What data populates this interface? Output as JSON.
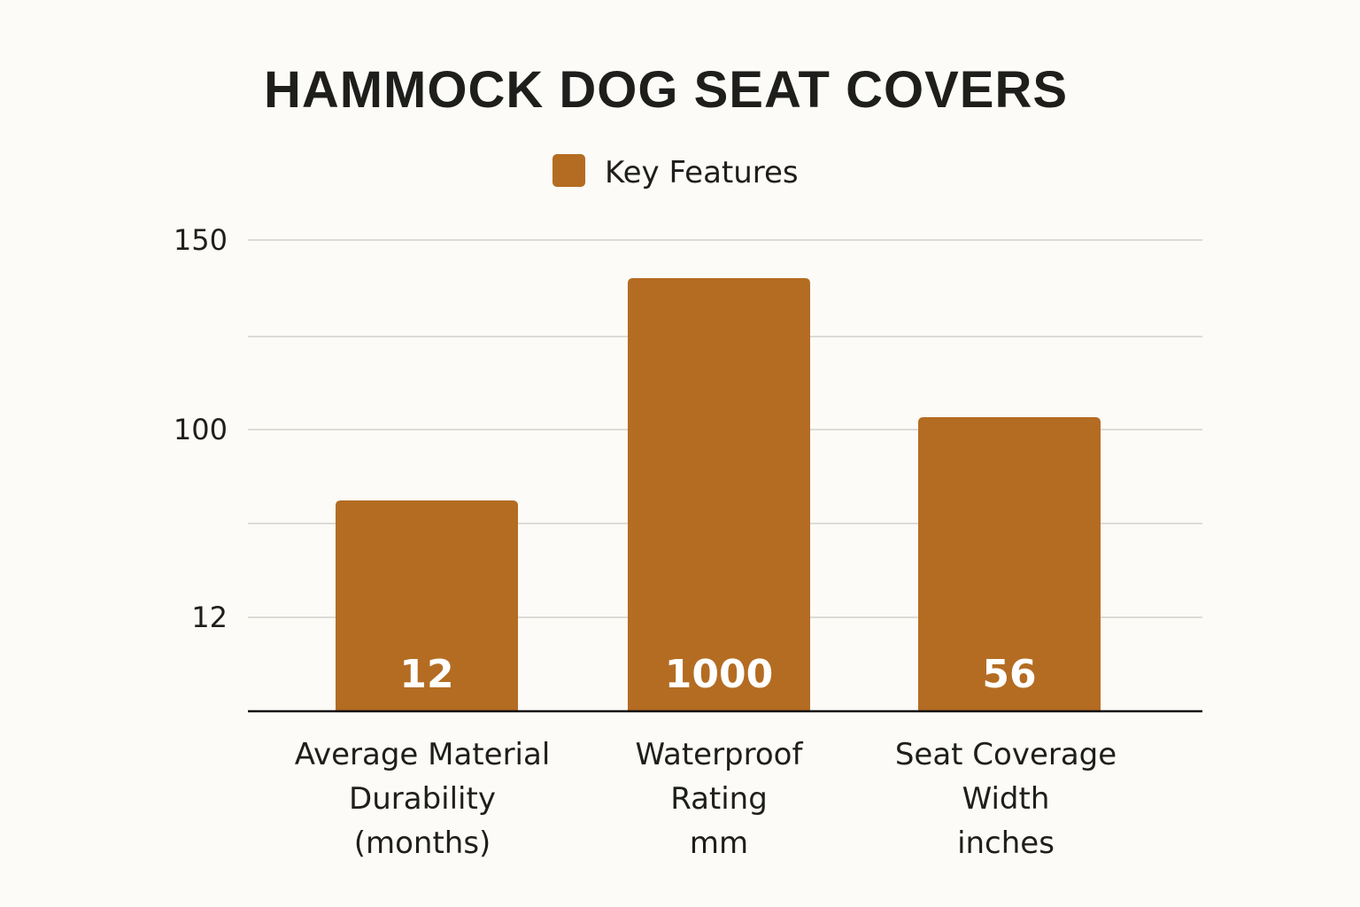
{
  "chart_data": {
    "type": "bar",
    "title": "HAMMOCK DOG SEAT COVERS",
    "legend": {
      "label": "Key Features",
      "placement": "top-center"
    },
    "categories": [
      [
        "Average Material",
        "Durability",
        "(months)"
      ],
      [
        "Waterproof",
        "Rating",
        "mm"
      ],
      [
        "Seat Coverage",
        "Width",
        "inches"
      ]
    ],
    "series": [
      {
        "name": "Key Features",
        "values": [
          12,
          1000,
          56
        ],
        "data_labels": [
          "12",
          "1000",
          "56"
        ]
      }
    ],
    "y_ticks": [
      "12",
      "100",
      "150"
    ],
    "gridlines": true,
    "colors": {
      "bar": "#b46c22",
      "background": "#fcfbf7",
      "grid": "#dddbd6"
    }
  }
}
